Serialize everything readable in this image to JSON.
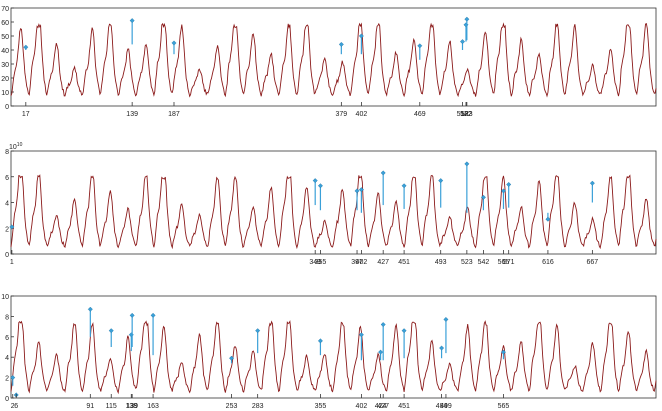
{
  "colors": {
    "signal": "#8b1a1a",
    "marker": "#3aa0d8",
    "frame": "#333333",
    "background": "#ffffff"
  },
  "chart_data": [
    {
      "type": "line",
      "name": "panel-1",
      "ylim": [
        0,
        70
      ],
      "xlim": [
        0,
        740
      ],
      "y_ticks": [
        "0",
        "10",
        "20",
        "30",
        "40",
        "50",
        "60",
        "70"
      ],
      "y_exponent": "",
      "period": 20.5,
      "min_level": 8,
      "max_level": 55,
      "x_tick_labels": [
        "17",
        "139",
        "187",
        "379",
        "402",
        "469",
        "518",
        "522",
        "523"
      ],
      "markers": [
        {
          "x": 17,
          "base": 40,
          "value": 42
        },
        {
          "x": 139,
          "base": 44,
          "value": 61
        },
        {
          "x": 187,
          "base": 37,
          "value": 45
        },
        {
          "x": 379,
          "base": 37,
          "value": 44
        },
        {
          "x": 402,
          "base": 37,
          "value": 50
        },
        {
          "x": 469,
          "base": 33,
          "value": 43
        },
        {
          "x": 518,
          "base": 40,
          "value": 46
        },
        {
          "x": 522,
          "base": 46,
          "value": 58
        },
        {
          "x": 523,
          "base": 47,
          "value": 62
        }
      ]
    },
    {
      "type": "line",
      "name": "panel-2",
      "ylim": [
        0,
        8
      ],
      "xlim": [
        0,
        740
      ],
      "y_ticks": [
        "0",
        "2",
        "4",
        "6",
        "8"
      ],
      "y_exponent": "10",
      "y_exponent_power": "10",
      "period": 20.5,
      "min_level": 0.6,
      "max_level": 5.7,
      "x_tick_labels": [
        "1",
        "349",
        "355",
        "397",
        "402",
        "427",
        "451",
        "493",
        "523",
        "542",
        "565",
        "571",
        "616",
        "667"
      ],
      "markers": [
        {
          "x": 1,
          "base": 2.0,
          "value": 2.1
        },
        {
          "x": 349,
          "base": 3.8,
          "value": 5.7
        },
        {
          "x": 355,
          "base": 3.4,
          "value": 5.3
        },
        {
          "x": 397,
          "base": 3.4,
          "value": 4.9
        },
        {
          "x": 402,
          "base": 3.2,
          "value": 5.0
        },
        {
          "x": 427,
          "base": 3.8,
          "value": 6.3
        },
        {
          "x": 451,
          "base": 3.5,
          "value": 5.3
        },
        {
          "x": 493,
          "base": 3.6,
          "value": 5.7
        },
        {
          "x": 523,
          "base": 3.2,
          "value": 7.0
        },
        {
          "x": 542,
          "base": 3.4,
          "value": 4.4
        },
        {
          "x": 565,
          "base": 3.5,
          "value": 4.9
        },
        {
          "x": 571,
          "base": 3.6,
          "value": 5.4
        },
        {
          "x": 616,
          "base": 3.2,
          "value": 2.7
        },
        {
          "x": 667,
          "base": 4.0,
          "value": 5.5
        }
      ]
    },
    {
      "type": "line",
      "name": "panel-3",
      "ylim": [
        0,
        10
      ],
      "xlim": [
        0,
        740
      ],
      "y_ticks": [
        "0",
        "2",
        "4",
        "6",
        "8",
        "10"
      ],
      "y_exponent": "",
      "period": 20.5,
      "min_level": 0.7,
      "max_level": 7.0,
      "x_tick_labels": [
        "2",
        "6",
        "91",
        "115",
        "138",
        "139",
        "163",
        "253",
        "283",
        "355",
        "402",
        "424",
        "427",
        "451",
        "494",
        "499",
        "565"
      ],
      "markers": [
        {
          "x": 2,
          "base": 1.2,
          "value": 2.0
        },
        {
          "x": 6,
          "base": 0.5,
          "value": 0.3
        },
        {
          "x": 91,
          "base": 6.0,
          "value": 8.7
        },
        {
          "x": 115,
          "base": 5.0,
          "value": 6.6
        },
        {
          "x": 138,
          "base": 4.6,
          "value": 6.2
        },
        {
          "x": 139,
          "base": 5.0,
          "value": 8.1
        },
        {
          "x": 163,
          "base": 4.2,
          "value": 8.1
        },
        {
          "x": 253,
          "base": 3.4,
          "value": 3.9
        },
        {
          "x": 283,
          "base": 4.4,
          "value": 6.6
        },
        {
          "x": 355,
          "base": 4.2,
          "value": 5.6
        },
        {
          "x": 402,
          "base": 3.7,
          "value": 6.2
        },
        {
          "x": 424,
          "base": 3.7,
          "value": 4.5
        },
        {
          "x": 427,
          "base": 3.7,
          "value": 7.2
        },
        {
          "x": 451,
          "base": 3.9,
          "value": 6.6
        },
        {
          "x": 494,
          "base": 3.9,
          "value": 4.9
        },
        {
          "x": 499,
          "base": 4.4,
          "value": 7.7
        },
        {
          "x": 565,
          "base": 3.8,
          "value": 4.5
        }
      ]
    }
  ]
}
